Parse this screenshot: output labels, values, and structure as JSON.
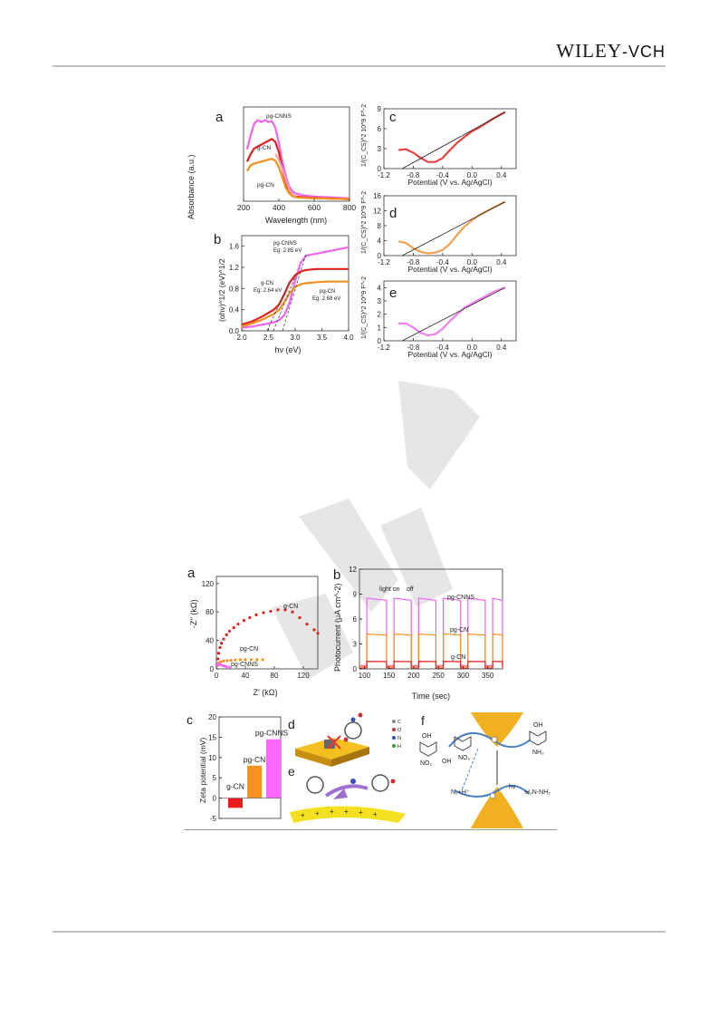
{
  "header": {
    "brand": "WILEY",
    "brand_suffix": "-VCH"
  },
  "figure1": {
    "a": {
      "letter": "a",
      "ylabel": "Absorbance (a.u.)",
      "xlabel": "Wavelength (nm)",
      "xticks": [
        "200",
        "400",
        "600",
        "800"
      ],
      "labels": {
        "s1": "pg-CNNS",
        "s2": "g-CN",
        "s3": "pg-CN"
      },
      "chart_data": {
        "type": "line",
        "xlim": [
          200,
          800
        ],
        "ylim": [
          0,
          1
        ],
        "series": [
          {
            "name": "pg-CNNS",
            "color": "#ee66ee",
            "x": [
              220,
              240,
              260,
              280,
              300,
              320,
              340,
              360,
              380,
              400,
              420,
              440,
              460,
              480,
              500,
              550,
              600,
              650,
              700,
              750,
              800
            ],
            "y": [
              0.55,
              0.7,
              0.82,
              0.86,
              0.84,
              0.86,
              0.84,
              0.85,
              0.78,
              0.62,
              0.42,
              0.26,
              0.15,
              0.1,
              0.08,
              0.06,
              0.05,
              0.045,
              0.04,
              0.035,
              0.03
            ]
          },
          {
            "name": "g-CN",
            "color": "#e02020",
            "x": [
              220,
              240,
              260,
              280,
              300,
              320,
              340,
              360,
              380,
              400,
              420,
              440,
              460,
              480,
              500,
              550,
              600,
              650,
              700,
              750,
              800
            ],
            "y": [
              0.42,
              0.5,
              0.56,
              0.58,
              0.6,
              0.62,
              0.64,
              0.66,
              0.63,
              0.52,
              0.34,
              0.18,
              0.09,
              0.06,
              0.05,
              0.04,
              0.035,
              0.03,
              0.03,
              0.025,
              0.02
            ]
          },
          {
            "name": "pg-CN",
            "color": "#f39020",
            "x": [
              220,
              240,
              260,
              280,
              300,
              320,
              340,
              360,
              380,
              400,
              420,
              440,
              460,
              480,
              500,
              550,
              600,
              650,
              700,
              750,
              800
            ],
            "y": [
              0.32,
              0.38,
              0.4,
              0.41,
              0.42,
              0.43,
              0.44,
              0.45,
              0.43,
              0.36,
              0.25,
              0.14,
              0.08,
              0.05,
              0.04,
              0.035,
              0.03,
              0.03,
              0.025,
              0.025,
              0.02
            ]
          },
          {
            "name": "",
            "color": "#f4a0a0",
            "x": [
              380,
              400,
              420,
              440,
              460,
              480,
              500
            ],
            "y": [
              0.5,
              0.44,
              0.34,
              0.22,
              0.12,
              0.07,
              0.05
            ]
          }
        ]
      }
    },
    "b": {
      "letter": "b",
      "ylabel": "(αhν)^1/2 (eV)^1/2",
      "xlabel": "hν (eV)",
      "xticks": [
        "2.0",
        "2.5",
        "3.0",
        "3.5",
        "4.0"
      ],
      "yticks": [
        "0.0",
        "0.4",
        "0.8",
        "1.2",
        "1.6"
      ],
      "annotations": {
        "cnns_name": "pg-CNNS",
        "cnns_eg": "Eg: 2.85 eV",
        "gcn_name": "g-CN",
        "gcn_eg": "Eg: 2.64 eV",
        "pgcn_name": "pg-CN",
        "pgcn_eg": "Eg: 2.68 eV"
      },
      "chart_data": {
        "type": "line",
        "xlim": [
          2.0,
          4.0
        ],
        "ylim": [
          0,
          1.8
        ],
        "series": [
          {
            "name": "pg-CNNS",
            "color": "#ee66ee",
            "x": [
              2.0,
              2.2,
              2.4,
              2.6,
              2.7,
              2.8,
              2.9,
              3.0,
              3.1,
              3.2,
              3.4,
              3.6,
              3.8,
              4.0
            ],
            "y": [
              0.06,
              0.08,
              0.12,
              0.16,
              0.2,
              0.3,
              0.55,
              0.95,
              1.28,
              1.42,
              1.46,
              1.5,
              1.54,
              1.58
            ]
          },
          {
            "name": "g-CN",
            "color": "#e02020",
            "x": [
              2.0,
              2.2,
              2.4,
              2.6,
              2.7,
              2.8,
              2.9,
              3.0,
              3.1,
              3.2,
              3.4,
              3.6,
              3.8,
              4.0
            ],
            "y": [
              0.12,
              0.18,
              0.28,
              0.4,
              0.5,
              0.7,
              0.92,
              1.05,
              1.12,
              1.15,
              1.17,
              1.17,
              1.17,
              1.17
            ]
          },
          {
            "name": "pg-CN",
            "color": "#f39020",
            "x": [
              2.0,
              2.2,
              2.4,
              2.6,
              2.7,
              2.8,
              2.9,
              3.0,
              3.1,
              3.2,
              3.4,
              3.6,
              3.8,
              4.0
            ],
            "y": [
              0.08,
              0.14,
              0.22,
              0.32,
              0.4,
              0.55,
              0.72,
              0.83,
              0.88,
              0.9,
              0.92,
              0.93,
              0.93,
              0.93
            ]
          }
        ]
      }
    },
    "c": {
      "letter": "c",
      "ylabel": "1/(C_CS)^2 10^9 F^-2",
      "xlabel": "Potential (V vs. Ag/AgCl)",
      "xticks": [
        "-1.2",
        "-0.8",
        "-0.4",
        "0.0",
        "0.4"
      ],
      "yticks": [
        "0",
        "3",
        "6",
        "9"
      ],
      "chart_data": {
        "type": "line",
        "xlim": [
          -1.2,
          0.6
        ],
        "ylim": [
          0,
          9
        ],
        "series": [
          {
            "name": "",
            "color": "#e84040",
            "x": [
              -1.0,
              -0.9,
              -0.8,
              -0.7,
              -0.6,
              -0.5,
              -0.4,
              -0.3,
              -0.2,
              -0.1,
              0.0,
              0.1,
              0.2,
              0.3,
              0.4,
              0.45
            ],
            "y": [
              2.8,
              2.9,
              2.4,
              1.6,
              1.0,
              1.0,
              1.6,
              2.8,
              3.9,
              4.8,
              5.6,
              6.2,
              6.9,
              7.6,
              8.2,
              8.5
            ]
          },
          {
            "name": "",
            "color": "#222",
            "x": [
              -0.95,
              0.45
            ],
            "y": [
              0.0,
              8.5
            ]
          }
        ]
      }
    },
    "d": {
      "letter": "d",
      "ylabel": "1/(C_CS)^2 10^9 F^-2",
      "xlabel": "Potential (V vs. Ag/AgCl)",
      "xticks": [
        "-1.2",
        "-0.8",
        "-0.4",
        "0.0",
        "0.4"
      ],
      "yticks": [
        "0",
        "4",
        "8",
        "12",
        "16"
      ],
      "chart_data": {
        "type": "line",
        "xlim": [
          -1.2,
          0.6
        ],
        "ylim": [
          0,
          16
        ],
        "series": [
          {
            "name": "",
            "color": "#f3a050",
            "x": [
              -1.0,
              -0.9,
              -0.8,
              -0.7,
              -0.6,
              -0.5,
              -0.4,
              -0.3,
              -0.2,
              -0.1,
              0.0,
              0.1,
              0.2,
              0.3,
              0.4,
              0.45
            ],
            "y": [
              3.8,
              3.4,
              2.0,
              1.0,
              0.6,
              0.8,
              1.5,
              3.2,
              5.6,
              7.8,
              9.4,
              10.8,
              11.9,
              12.9,
              13.9,
              14.4
            ]
          },
          {
            "name": "",
            "color": "#222",
            "x": [
              -0.95,
              0.45
            ],
            "y": [
              0.0,
              14.4
            ]
          }
        ]
      }
    },
    "e": {
      "letter": "e",
      "ylabel": "1/(C_CS)^2 10^9 F^-2",
      "xlabel": "Potential (V vs. Ag/AgCl)",
      "xticks": [
        "-1.2",
        "-0.8",
        "-0.4",
        "0.0",
        "0.4"
      ],
      "yticks": [
        "0",
        "1",
        "2",
        "3",
        "4"
      ],
      "chart_data": {
        "type": "line",
        "xlim": [
          -1.2,
          0.6
        ],
        "ylim": [
          0,
          4.5
        ],
        "series": [
          {
            "name": "",
            "color": "#f080f0",
            "x": [
              -1.0,
              -0.9,
              -0.8,
              -0.7,
              -0.6,
              -0.5,
              -0.4,
              -0.3,
              -0.2,
              -0.1,
              0.0,
              0.1,
              0.2,
              0.3,
              0.4,
              0.45
            ],
            "y": [
              1.3,
              1.3,
              1.0,
              0.6,
              0.4,
              0.5,
              0.9,
              1.5,
              2.0,
              2.5,
              2.8,
              3.1,
              3.4,
              3.7,
              3.9,
              4.0
            ]
          },
          {
            "name": "",
            "color": "#222",
            "x": [
              -0.95,
              0.45
            ],
            "y": [
              0.0,
              4.0
            ]
          }
        ]
      }
    }
  },
  "figure2": {
    "a": {
      "letter": "a",
      "ylabel": "-Z'' (kΩ)",
      "xlabel": "Z' (kΩ)",
      "xticks": [
        "0",
        "40",
        "80",
        "120"
      ],
      "yticks": [
        "0",
        "40",
        "80",
        "120"
      ],
      "labels": {
        "gcn": "g-CN",
        "pgcn": "pg-CN",
        "cnns": "pg-CNNS"
      },
      "chart_data": {
        "type": "scatter",
        "xlim": [
          0,
          140
        ],
        "ylim": [
          0,
          130
        ],
        "series": [
          {
            "name": "g-CN",
            "color": "#e02020",
            "x": [
              1,
              2,
              3,
              5,
              7,
              10,
              14,
              18,
              24,
              30,
              38,
              46,
              55,
              65,
              75,
              85,
              95,
              105,
              115,
              125,
              135,
              140
            ],
            "y": [
              6,
              14,
              22,
              30,
              36,
              42,
              48,
              53,
              58,
              63,
              68,
              72,
              76,
              79,
              81,
              83,
              83,
              80,
              72,
              63,
              55,
              50
            ]
          },
          {
            "name": "pg-CN",
            "color": "#f39020",
            "x": [
              1,
              3,
              6,
              10,
              15,
              20,
              26,
              33,
              40,
              48,
              56,
              64
            ],
            "y": [
              4,
              8,
              10,
              11,
              11.5,
              12,
              12.5,
              13,
              13,
              13,
              13,
              13
            ]
          },
          {
            "name": "pg-CNNS",
            "color": "#ee66ee",
            "x": [
              1,
              3,
              5,
              8,
              11,
              14,
              18
            ],
            "y": [
              5,
              7,
              6,
              5,
              4,
              3,
              2
            ]
          }
        ]
      }
    },
    "b": {
      "letter": "b",
      "ylabel": "Photocurrent (μA cm^-2)",
      "xlabel": "Time (sec)",
      "xticks": [
        "100",
        "150",
        "200",
        "250",
        "300",
        "350"
      ],
      "yticks": [
        "0",
        "3",
        "6",
        "9",
        "12"
      ],
      "labels": {
        "on": "light on",
        "off": "off",
        "cnns": "pg-CNNS",
        "pgcn": "pg-CN",
        "gcn": "g-CN"
      },
      "chart_data": {
        "type": "line",
        "xlim": [
          90,
          380
        ],
        "ylim": [
          0,
          12
        ],
        "on_intervals": [
          [
            105,
            145
          ],
          [
            160,
            195
          ],
          [
            210,
            245
          ],
          [
            260,
            295
          ],
          [
            310,
            345
          ],
          [
            360,
            380
          ]
        ],
        "series": [
          {
            "name": "pg-CNNS",
            "color": "#ee66ee",
            "on": 8.5,
            "off": 0.4
          },
          {
            "name": "pg-CN",
            "color": "#f39020",
            "on": 4.2,
            "off": 0.3
          },
          {
            "name": "g-CN",
            "color": "#e02020",
            "on": 0.9,
            "off": 0.1
          }
        ]
      }
    },
    "c": {
      "letter": "c",
      "ylabel": "Zeta potential (mV)",
      "yticks": [
        "-5",
        "0",
        "5",
        "10",
        "15",
        "20"
      ],
      "chart_data": {
        "type": "bar",
        "ylim": [
          -5,
          20
        ],
        "categories": [
          "g-CN",
          "pg-CN",
          "pg-CNNS"
        ],
        "values": [
          -2.4,
          8.0,
          14.5
        ],
        "colors": [
          "#ee1c1c",
          "#f7941d",
          "#ff66ff"
        ]
      }
    },
    "d": {
      "letter": "d",
      "legend": [
        "C",
        "O",
        "N",
        "H"
      ],
      "legend_colors": [
        "#888888",
        "#d03030",
        "#3050c0",
        "#30a030"
      ]
    },
    "e": {
      "letter": "e"
    },
    "f": {
      "letter": "f",
      "oh": "OH",
      "no2": "NO₂",
      "nh2": "NH₂",
      "n2h": "N₂+H⁺",
      "hydrazine": "H₂N-NH₂",
      "hv": "hν"
    }
  }
}
